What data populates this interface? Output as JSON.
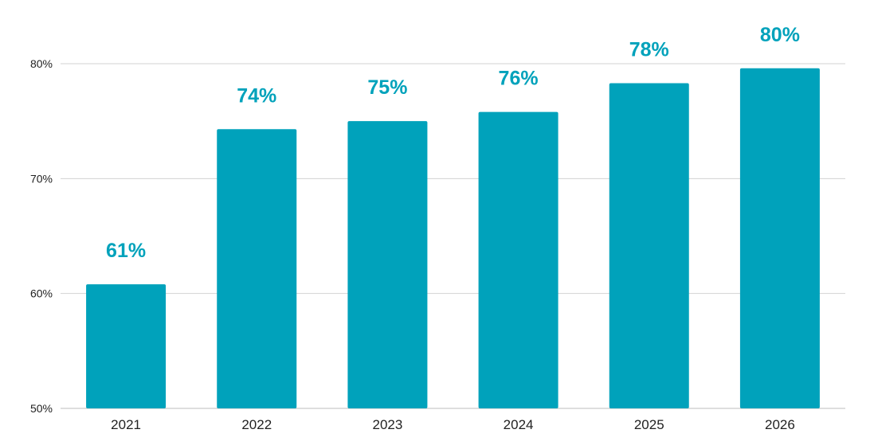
{
  "chart_data": {
    "type": "bar",
    "title": "",
    "xlabel": "",
    "ylabel": "",
    "categories": [
      "2021",
      "2022",
      "2023",
      "2024",
      "2025",
      "2026"
    ],
    "values": [
      60.8,
      74.3,
      75.0,
      75.8,
      78.3,
      79.6
    ],
    "data_labels": [
      "61%",
      "74%",
      "75%",
      "76%",
      "78%",
      "80%"
    ],
    "ylim": [
      50,
      80
    ],
    "y_ticks": [
      50,
      60,
      70,
      80
    ],
    "y_tick_labels": [
      "50%",
      "60%",
      "70%",
      "80%"
    ],
    "grid": true,
    "legend": "none",
    "bar_color": "#00A2BB",
    "label_color": "#00A2BB"
  }
}
